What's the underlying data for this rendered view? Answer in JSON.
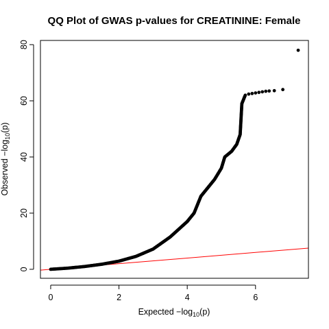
{
  "chart_data": {
    "type": "scatter",
    "title": "QQ Plot of GWAS p-values for CREATININE: Female",
    "xlabel": {
      "prefix": "Expected  −log",
      "sub": "10",
      "suffix": "(p)"
    },
    "ylabel": {
      "prefix": "Observed  −log",
      "sub": "10",
      "suffix": "(p)"
    },
    "xlim": [
      -0.3,
      7.55
    ],
    "ylim": [
      -3.2,
      81.5
    ],
    "xticks": [
      0,
      2,
      4,
      6
    ],
    "yticks": [
      0,
      20,
      40,
      60,
      80
    ],
    "grid": false,
    "reference_line": {
      "slope": 1,
      "intercept": 0,
      "color": "#ff0000"
    },
    "point_color": "#000000",
    "curve": [
      [
        0.0,
        0.0
      ],
      [
        0.5,
        0.4
      ],
      [
        1.0,
        1.0
      ],
      [
        1.5,
        1.8
      ],
      [
        2.0,
        2.9
      ],
      [
        2.5,
        4.6
      ],
      [
        3.0,
        7.2
      ],
      [
        3.5,
        11.5
      ],
      [
        4.0,
        17.0
      ],
      [
        4.2,
        20.0
      ],
      [
        4.4,
        26.0
      ],
      [
        4.6,
        29.0
      ],
      [
        4.8,
        32.0
      ],
      [
        5.0,
        36.0
      ],
      [
        5.1,
        40.0
      ],
      [
        5.3,
        42.0
      ],
      [
        5.45,
        44.5
      ],
      [
        5.55,
        48.0
      ],
      [
        5.6,
        59.0
      ],
      [
        5.7,
        62.0
      ]
    ],
    "tail_points": [
      [
        5.8,
        62.4
      ],
      [
        5.9,
        62.6
      ],
      [
        6.0,
        62.8
      ],
      [
        6.1,
        63.0
      ],
      [
        6.2,
        63.2
      ],
      [
        6.3,
        63.4
      ],
      [
        6.4,
        63.5
      ],
      [
        6.55,
        63.6
      ],
      [
        6.8,
        64.0
      ],
      [
        7.25,
        78.0
      ]
    ]
  }
}
